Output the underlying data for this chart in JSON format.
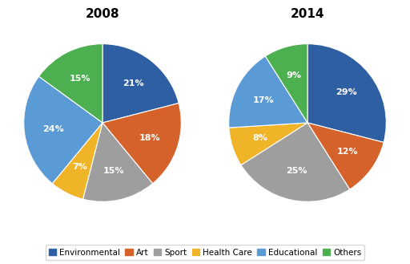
{
  "title_2008": "2008",
  "title_2014": "2014",
  "labels": [
    "Environmental",
    "Art",
    "Sport",
    "Health Care",
    "Educational",
    "Others"
  ],
  "colors": [
    "#2E5FA3",
    "#D4622A",
    "#9E9E9E",
    "#F0B429",
    "#5B9BD5",
    "#4CAF50"
  ],
  "values_2008": [
    21,
    18,
    15,
    7,
    24,
    15
  ],
  "values_2014": [
    29,
    12,
    25,
    8,
    17,
    9
  ],
  "pct_labels_2008": [
    "21%",
    "18%",
    "15%",
    "7%",
    "24%",
    "15%"
  ],
  "pct_labels_2014": [
    "29%",
    "12%",
    "25%",
    "8%",
    "17%",
    "9%"
  ],
  "startangle_2008": 90,
  "startangle_2014": 90,
  "title_fontsize": 11,
  "label_fontsize": 8,
  "legend_fontsize": 7.5,
  "background_color": "#ffffff",
  "text_color": "#ffffff"
}
